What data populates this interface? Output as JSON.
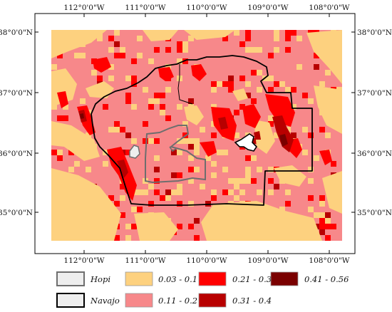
{
  "map": {
    "top_ticks": [
      "112°0'0\"W",
      "111°0'0\"W",
      "110°0'0\"W",
      "109°0'0\"W",
      "108°0'0\"W"
    ],
    "bottom_ticks": [
      "112°0'0\"W",
      "111°0'0\"W",
      "110°0'0\"W",
      "109°0'0\"W",
      "108°0'0\"W"
    ],
    "left_ticks": [
      "38°0'0\"N",
      "37°0'0\"N",
      "36°0'0\"N",
      "35°0'0\"N"
    ],
    "right_ticks": [
      "38°0'0\"N",
      "37°0'0\"N",
      "36°0'0\"N",
      "35°0'0\"N"
    ],
    "colors": {
      "class_1": "#fdd17f",
      "class_2": "#f7888a",
      "class_3": "#ff0000",
      "class_4": "#b80000",
      "class_5": "#7a0000",
      "hopi_fill": "#eeeeee",
      "hopi_stroke": "#6e6e6e",
      "navajo_stroke": "#000000"
    }
  },
  "legend": {
    "hopi": "Hopi",
    "navajo": "Navajo",
    "class_1": "0.03 - 0.1",
    "class_2": "0.11 - 0.2",
    "class_3": "0.21 - 0.3",
    "class_4": "0.31 - 0.4",
    "class_5": "0.41 - 0.56"
  }
}
